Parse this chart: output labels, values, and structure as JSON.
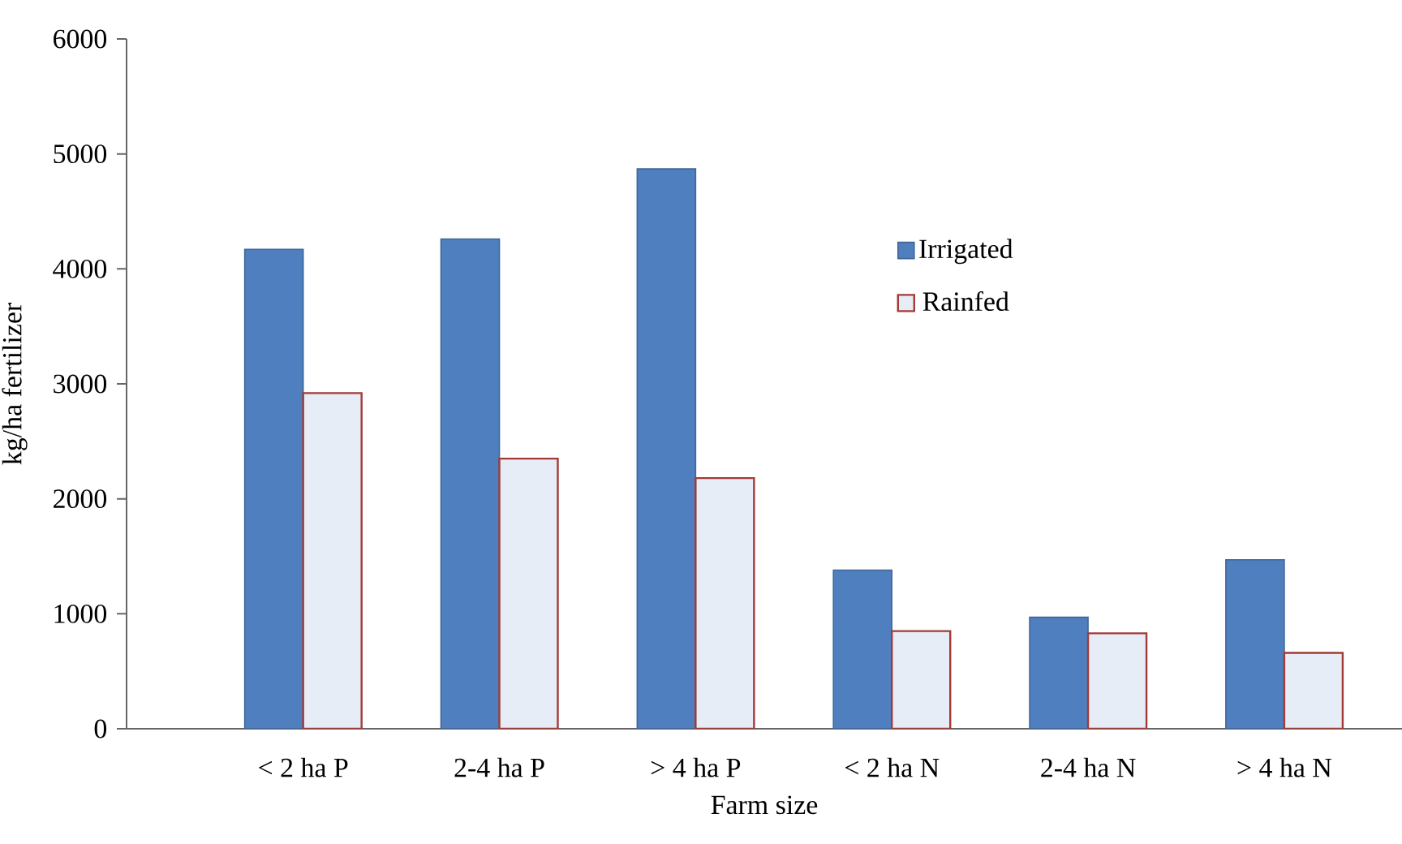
{
  "chart_data": {
    "type": "bar",
    "xlabel": "Farm size",
    "ylabel": "kg/ha fertilizer",
    "categories": [
      "< 2 ha P",
      "2-4 ha P",
      "> 4 ha P",
      "< 2 ha N",
      "2-4 ha N",
      "> 4 ha N"
    ],
    "series": [
      {
        "name": "Irrigated",
        "color": "#4f7fbf",
        "values": [
          4170,
          4260,
          4870,
          1380,
          970,
          1470
        ]
      },
      {
        "name": "Rainfed",
        "color": "#e6edf7",
        "values": [
          2920,
          2350,
          2180,
          850,
          830,
          660
        ]
      }
    ],
    "ylim": [
      0,
      6000
    ],
    "yticks": [
      0,
      1000,
      2000,
      3000,
      4000,
      5000,
      6000
    ],
    "grid": false,
    "legend": "center"
  }
}
